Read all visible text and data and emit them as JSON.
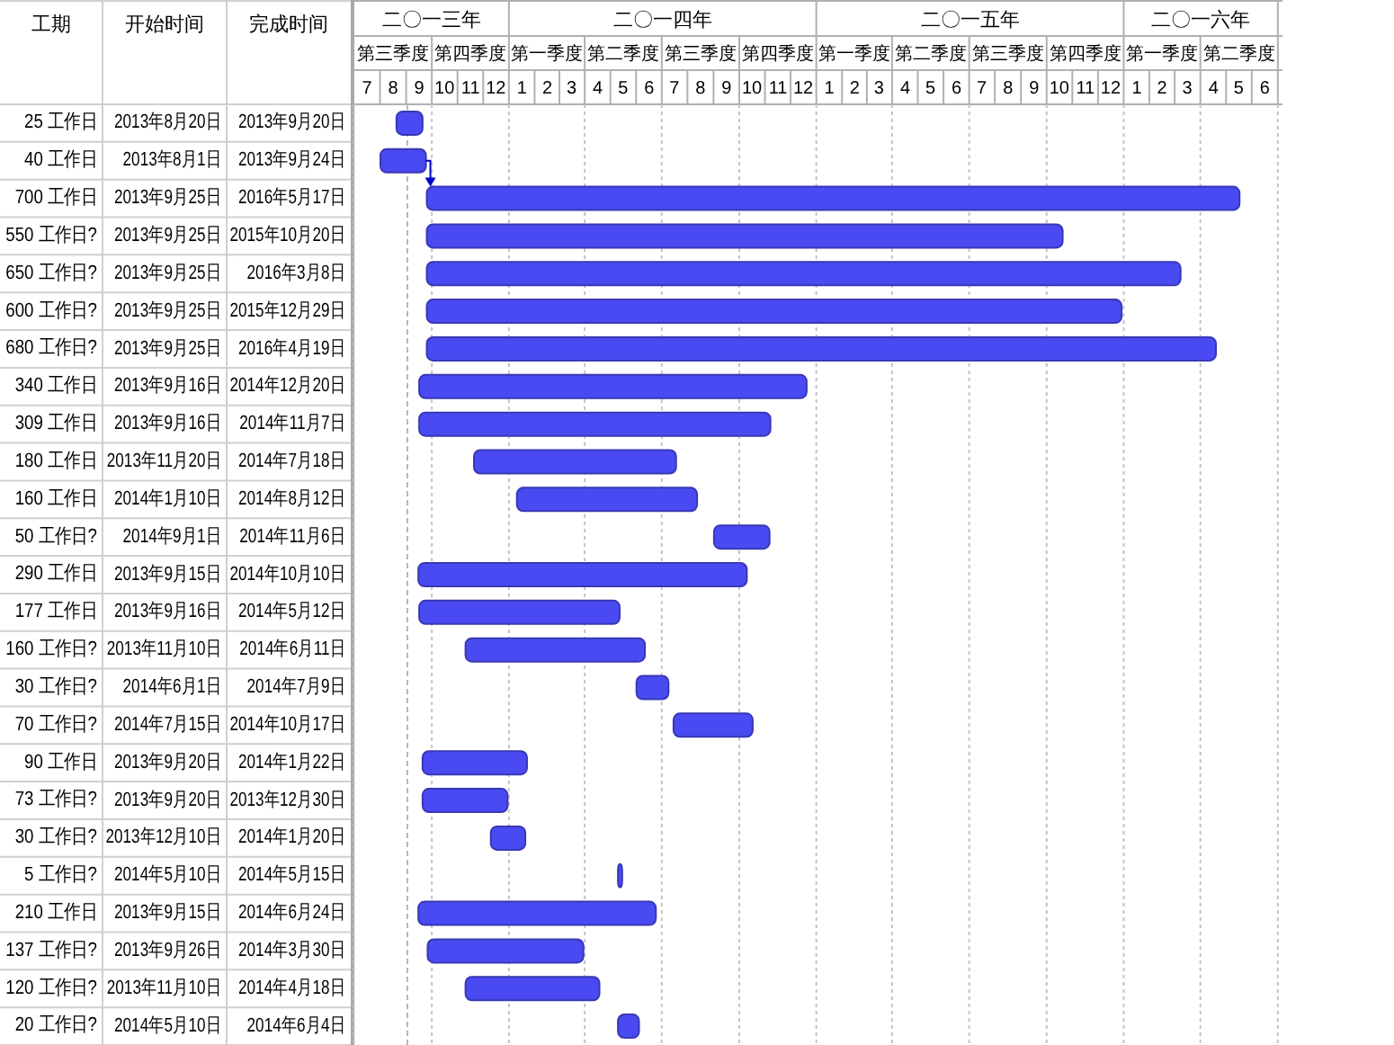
{
  "chart_data": {
    "type": "bar",
    "orientation": "horizontal",
    "categories": [
      null,
      null,
      null,
      null,
      null,
      null,
      null,
      null,
      null,
      null,
      null,
      null,
      null,
      null,
      null,
      null,
      null,
      null,
      null,
      null,
      null,
      null,
      null,
      null,
      null
    ],
    "base": [
      15937,
      15918,
      15973,
      15973,
      15973,
      15973,
      15973,
      15964,
      15964,
      16029,
      16080,
      16314,
      15963,
      15964,
      16019,
      16222,
      16266,
      15968,
      15968,
      16049,
      16200,
      15963,
      15974,
      16019,
      16200
    ],
    "values": [
      31,
      54,
      965,
      755,
      895,
      825,
      937,
      460,
      417,
      240,
      214,
      66,
      390,
      238,
      213,
      38,
      94,
      124,
      101,
      41,
      5,
      282,
      185,
      159,
      25
    ],
    "color": "#4a4af2",
    "xlim": [
      "2013-07-01",
      "2016-07-07"
    ],
    "xticks": [
      {
        "value": "2013-07-16",
        "label": "7"
      },
      {
        "value": "2013-08-16",
        "label": "8"
      },
      {
        "value": "2013-09-16",
        "label": "9"
      },
      {
        "value": "2013-10-16",
        "label": "10"
      },
      {
        "value": "2013-11-16",
        "label": "11"
      },
      {
        "value": "2013-12-16",
        "label": "12"
      },
      {
        "value": "2014-01-16",
        "label": "1"
      },
      {
        "value": "2014-02-15",
        "label": "2"
      },
      {
        "value": "2014-03-16",
        "label": "3"
      },
      {
        "value": "2014-04-16",
        "label": "4"
      },
      {
        "value": "2014-05-16",
        "label": "5"
      },
      {
        "value": "2014-06-16",
        "label": "6"
      },
      {
        "value": "2014-07-16",
        "label": "7"
      },
      {
        "value": "2014-08-16",
        "label": "8"
      },
      {
        "value": "2014-09-16",
        "label": "9"
      },
      {
        "value": "2014-10-16",
        "label": "10"
      },
      {
        "value": "2014-11-16",
        "label": "11"
      },
      {
        "value": "2014-12-16",
        "label": "12"
      },
      {
        "value": "2015-01-16",
        "label": "1"
      },
      {
        "value": "2015-02-15",
        "label": "2"
      },
      {
        "value": "2015-03-16",
        "label": "3"
      },
      {
        "value": "2015-04-16",
        "label": "4"
      },
      {
        "value": "2015-05-16",
        "label": "5"
      },
      {
        "value": "2015-06-16",
        "label": "6"
      },
      {
        "value": "2015-07-16",
        "label": "7"
      },
      {
        "value": "2015-08-16",
        "label": "8"
      },
      {
        "value": "2015-09-16",
        "label": "9"
      },
      {
        "value": "2015-10-16",
        "label": "10"
      },
      {
        "value": "2015-11-16",
        "label": "11"
      },
      {
        "value": "2015-12-16",
        "label": "12"
      },
      {
        "value": "2016-01-16",
        "label": "1"
      },
      {
        "value": "2016-02-15",
        "label": "2"
      },
      {
        "value": "2016-03-16",
        "label": "3"
      },
      {
        "value": "2016-04-16",
        "label": "4"
      },
      {
        "value": "2016-05-16",
        "label": "5"
      },
      {
        "value": "2016-06-16",
        "label": "6"
      }
    ],
    "grid": "x",
    "ref_lines": [
      {
        "axis": "x",
        "value": "2013-09-02",
        "color": "#b8b8b8",
        "line_style": "dashed"
      }
    ],
    "annotations": [
      "工期",
      "开始时间",
      "完成时间",
      "第三季度",
      "第四季度",
      "第一季度",
      "第二季度",
      "第三季度",
      "第四季度",
      "第一季度",
      "第二季度",
      "第三季度",
      "第四季度",
      "第一季度",
      "第二季度",
      "二〇一三年",
      "二〇一四年",
      "二〇一五年",
      "二〇一六年",
      "25 工作日",
      "2013年8月20日",
      "2013年9月20日",
      "40 工作日",
      "2013年8月1日",
      "2013年9月24日",
      "700 工作日",
      "2013年9月25日",
      "2016年5月17日",
      "550 工作日?",
      "2013年9月25日",
      "2015年10月20日",
      "650 工作日?",
      "2013年9月25日",
      "2016年3月8日",
      "600 工作日?",
      "2013年9月25日",
      "2015年12月29日",
      "680 工作日?",
      "2013年9月25日",
      "2016年4月19日",
      "340 工作日",
      "2013年9月16日",
      "2014年12月20日",
      "309 工作日",
      "2013年9月16日",
      "2014年11月7日",
      "180 工作日",
      "2013年11月20日",
      "2014年7月18日",
      "160 工作日",
      "2014年1月10日",
      "2014年8月12日",
      "50 工作日?",
      "2014年9月1日",
      "2014年11月6日",
      "290 工作日",
      "2013年9月15日",
      "2014年10月10日",
      "177 工作日",
      "2013年9月16日",
      "2014年5月12日",
      "160 工作日?",
      "2013年11月10日",
      "2014年6月11日",
      "30 工作日?",
      "2014年6月1日",
      "2014年7月9日",
      "70 工作日?",
      "2014年7月15日",
      "2014年10月17日",
      "90 工作日",
      "2013年9月20日",
      "2014年1月22日",
      "73 工作日?",
      "2013年9月20日",
      "2013年12月30日",
      "30 工作日?",
      "2013年12月10日",
      "2014年1月20日",
      "5 工作日?",
      "2014年5月10日",
      "2014年5月15日",
      "210 工作日",
      "2013年9月15日",
      "2014年6月24日",
      "137 工作日?",
      "2013年9月26日",
      "2014年3月30日",
      "120 工作日?",
      "2013年11月10日",
      "2014年4月18日",
      "20 工作日?",
      "2014年5月10日",
      "2014年6月4日"
    ]
  }
}
